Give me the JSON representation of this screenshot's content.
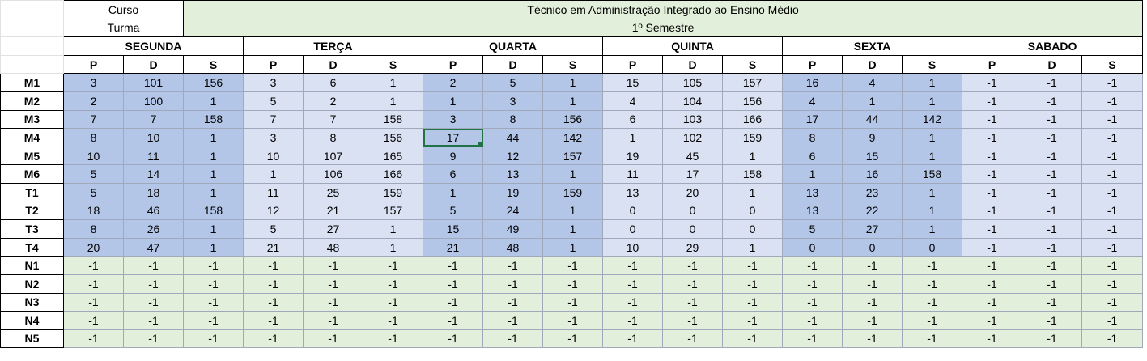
{
  "info": {
    "curso_label": "Curso",
    "curso_value": "Técnico em Administração Integrado ao Ensino Médio",
    "turma_label": "Turma",
    "turma_value": "1º Semestre"
  },
  "days": [
    "SEGUNDA",
    "TERÇA",
    "QUARTA",
    "QUINTA",
    "SEXTA",
    "SABADO"
  ],
  "subheaders": [
    "P",
    "D",
    "S"
  ],
  "selected_cell": {
    "row": "M4",
    "col": "QUARTA-P"
  },
  "rows": [
    {
      "label": "M1",
      "values": [
        "3",
        "101",
        "156",
        "3",
        "6",
        "1",
        "2",
        "5",
        "1",
        "15",
        "105",
        "157",
        "16",
        "4",
        "1",
        "-1",
        "-1",
        "-1"
      ]
    },
    {
      "label": "M2",
      "values": [
        "2",
        "100",
        "1",
        "5",
        "2",
        "1",
        "1",
        "3",
        "1",
        "4",
        "104",
        "156",
        "4",
        "1",
        "1",
        "-1",
        "-1",
        "-1"
      ]
    },
    {
      "label": "M3",
      "values": [
        "7",
        "7",
        "158",
        "7",
        "7",
        "158",
        "3",
        "8",
        "156",
        "6",
        "103",
        "166",
        "17",
        "44",
        "142",
        "-1",
        "-1",
        "-1"
      ]
    },
    {
      "label": "M4",
      "values": [
        "8",
        "10",
        "1",
        "3",
        "8",
        "156",
        "17",
        "44",
        "142",
        "1",
        "102",
        "159",
        "8",
        "9",
        "1",
        "-1",
        "-1",
        "-1"
      ]
    },
    {
      "label": "M5",
      "values": [
        "10",
        "11",
        "1",
        "10",
        "107",
        "165",
        "9",
        "12",
        "157",
        "19",
        "45",
        "1",
        "6",
        "15",
        "1",
        "-1",
        "-1",
        "-1"
      ]
    },
    {
      "label": "M6",
      "values": [
        "5",
        "14",
        "1",
        "1",
        "106",
        "166",
        "6",
        "13",
        "1",
        "11",
        "17",
        "158",
        "1",
        "16",
        "158",
        "-1",
        "-1",
        "-1"
      ]
    },
    {
      "label": "T1",
      "values": [
        "5",
        "18",
        "1",
        "11",
        "25",
        "159",
        "1",
        "19",
        "159",
        "13",
        "20",
        "1",
        "13",
        "23",
        "1",
        "-1",
        "-1",
        "-1"
      ]
    },
    {
      "label": "T2",
      "values": [
        "18",
        "46",
        "158",
        "12",
        "21",
        "157",
        "5",
        "24",
        "1",
        "0",
        "0",
        "0",
        "13",
        "22",
        "1",
        "-1",
        "-1",
        "-1"
      ]
    },
    {
      "label": "T3",
      "values": [
        "8",
        "26",
        "1",
        "5",
        "27",
        "1",
        "15",
        "49",
        "1",
        "0",
        "0",
        "0",
        "5",
        "27",
        "1",
        "-1",
        "-1",
        "-1"
      ]
    },
    {
      "label": "T4",
      "values": [
        "20",
        "47",
        "1",
        "21",
        "48",
        "1",
        "21",
        "48",
        "1",
        "10",
        "29",
        "1",
        "0",
        "0",
        "0",
        "-1",
        "-1",
        "-1"
      ]
    },
    {
      "label": "N1",
      "values": [
        "-1",
        "-1",
        "-1",
        "-1",
        "-1",
        "-1",
        "-1",
        "-1",
        "-1",
        "-1",
        "-1",
        "-1",
        "-1",
        "-1",
        "-1",
        "-1",
        "-1",
        "-1"
      ]
    },
    {
      "label": "N2",
      "values": [
        "-1",
        "-1",
        "-1",
        "-1",
        "-1",
        "-1",
        "-1",
        "-1",
        "-1",
        "-1",
        "-1",
        "-1",
        "-1",
        "-1",
        "-1",
        "-1",
        "-1",
        "-1"
      ]
    },
    {
      "label": "N3",
      "values": [
        "-1",
        "-1",
        "-1",
        "-1",
        "-1",
        "-1",
        "-1",
        "-1",
        "-1",
        "-1",
        "-1",
        "-1",
        "-1",
        "-1",
        "-1",
        "-1",
        "-1",
        "-1"
      ]
    },
    {
      "label": "N4",
      "values": [
        "-1",
        "-1",
        "-1",
        "-1",
        "-1",
        "-1",
        "-1",
        "-1",
        "-1",
        "-1",
        "-1",
        "-1",
        "-1",
        "-1",
        "-1",
        "-1",
        "-1",
        "-1"
      ]
    },
    {
      "label": "N5",
      "values": [
        "-1",
        "-1",
        "-1",
        "-1",
        "-1",
        "-1",
        "-1",
        "-1",
        "-1",
        "-1",
        "-1",
        "-1",
        "-1",
        "-1",
        "-1",
        "-1",
        "-1",
        "-1"
      ]
    }
  ]
}
